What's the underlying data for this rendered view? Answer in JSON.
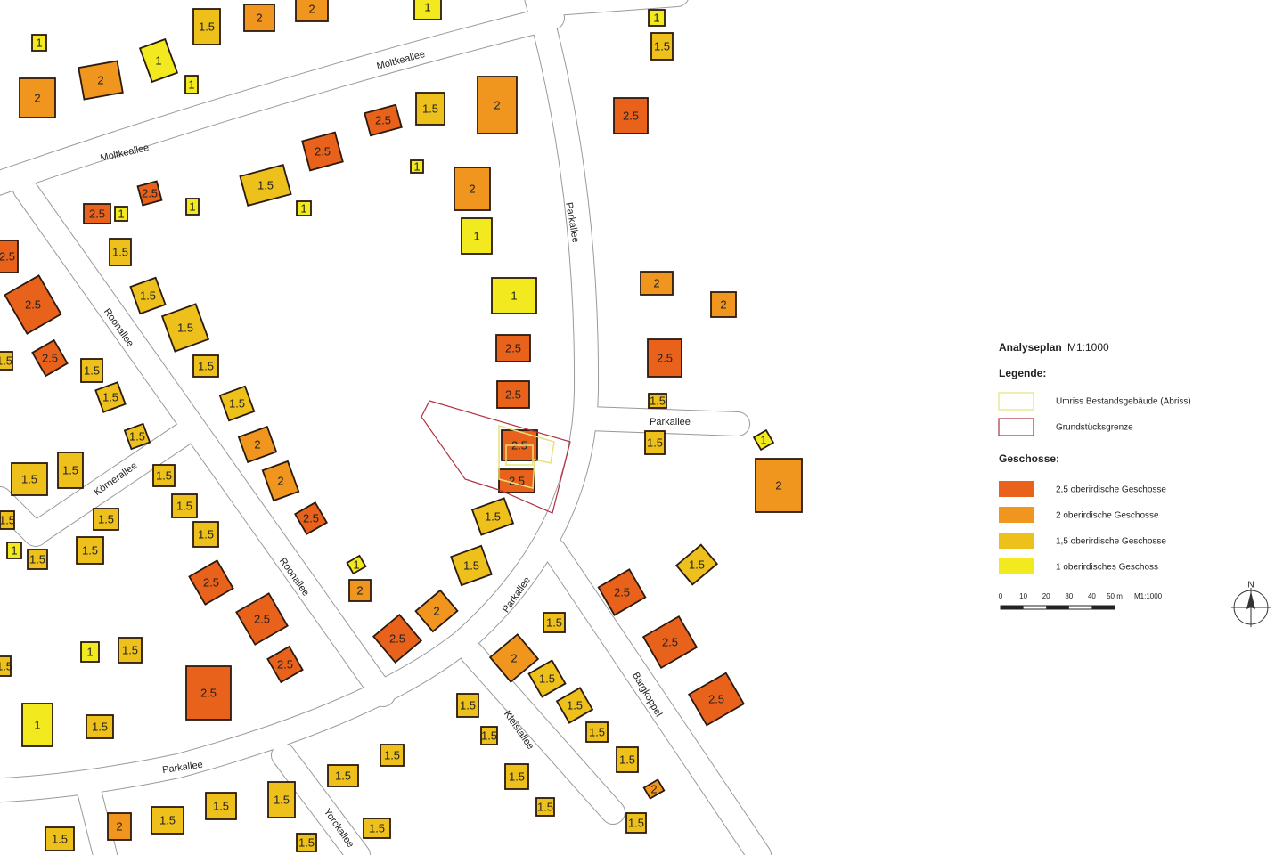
{
  "legend": {
    "title": "Analyseplan",
    "scale_note": "M1:1000",
    "legend_heading": "Legende:",
    "outline_items": [
      {
        "label": "Umriss Bestandsgebäude (Abriss)",
        "color": "#e6e27a"
      },
      {
        "label": "Grundstücksgrenze",
        "color": "#b03040"
      }
    ],
    "floors_heading": "Geschosse:",
    "floor_items": [
      {
        "label": "2,5 oberirdische Geschosse",
        "color": "#e8621c"
      },
      {
        "label": "2 oberirdische Geschosse",
        "color": "#f0961e"
      },
      {
        "label": "1,5 oberirdische Geschosse",
        "color": "#eec01c"
      },
      {
        "label": "1 oberirdisches Geschoss",
        "color": "#f2ea1e"
      }
    ]
  },
  "scale_bar": {
    "ticks": [
      "0",
      "10",
      "20",
      "30",
      "40",
      "50 m"
    ],
    "note": "M1:1000"
  },
  "north": "N",
  "streets": [
    "Moltkeallee",
    "Moltkeallee",
    "Parkallee",
    "Roonallee",
    "Parkallee",
    "Körnerallee",
    "Roonallee",
    "Parkallee",
    "Bargkoppel",
    "Kleistallee",
    "Parkallee",
    "Yorckallee"
  ],
  "buildings": [
    "1.5",
    "2",
    "2",
    "1",
    "1",
    "1",
    "1",
    "2",
    "2",
    "1",
    "1.5",
    "2.5",
    "1.5",
    "2",
    "2.5",
    "2.5",
    "1",
    "1.5",
    "2",
    "1",
    "2.5",
    "2.5",
    "1",
    "1",
    "1",
    "1.5",
    "2.5",
    "2.5",
    "1.5",
    "1",
    "2",
    "2",
    "1.5",
    "2.5",
    "2.5",
    "2.5",
    "1.5",
    "1.5",
    "1.5",
    "1.5",
    "1.5",
    "2.5",
    "1.5",
    "1.5",
    "2",
    "2.5",
    "1.5",
    "1",
    "1.5",
    "1.5",
    "1.5",
    "2",
    "2.5",
    "2",
    "1.5",
    "1.5",
    "2.5",
    "1.5",
    "1.5",
    "1.5",
    "1.5",
    "1",
    "1.5",
    "1.5",
    "1.5",
    "1",
    "2",
    "2.5",
    "2.5",
    "2",
    "2.5",
    "1.5",
    "2.5",
    "2.5",
    "2",
    "1",
    "1.5",
    "2.5",
    "1.5",
    "1.5",
    "2.5",
    "1.5",
    "1.5",
    "2.5",
    "1",
    "1.5",
    "1.5",
    "1.5",
    "1.5",
    "1.5",
    "1.5",
    "1.5",
    "2",
    "1.5",
    "1.5",
    "1.5",
    "1.5",
    "2",
    "1.5",
    "1.5",
    "1.5",
    "1.5"
  ]
}
